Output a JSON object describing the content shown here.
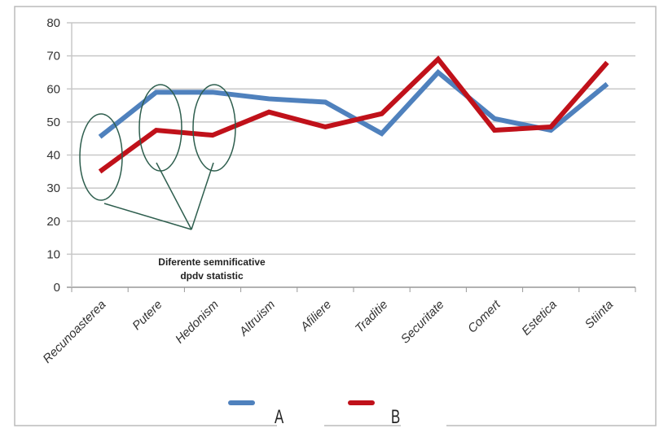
{
  "chart_data": {
    "type": "line",
    "title": "",
    "xlabel": "",
    "ylabel": "",
    "ylim": [
      0,
      80
    ],
    "yticks": [
      0,
      10,
      20,
      30,
      40,
      50,
      60,
      70,
      80
    ],
    "grid": true,
    "categories": [
      "Recunoasterea",
      "Putere",
      "Hedonism",
      "Altruism",
      "Afiliere",
      "Traditie",
      "Securitate",
      "Comert",
      "Estetica",
      "Stiinta"
    ],
    "series": [
      {
        "name": "A",
        "color": "#4f81bd",
        "values": [
          45.5,
          59,
          59,
          57,
          56,
          46.5,
          65,
          51,
          47.5,
          61.5
        ]
      },
      {
        "name": "B",
        "color": "#c0111a",
        "values": [
          35,
          47.5,
          46,
          53,
          48.5,
          52.5,
          69,
          47.5,
          48.5,
          68
        ]
      }
    ],
    "legend_position": "bottom",
    "annotation": {
      "lines": [
        "Diferente semnificative",
        "dpdv statistic"
      ],
      "highlighted_categories": [
        "Recunoasterea",
        "Putere",
        "Hedonism"
      ],
      "color": "#2e5e4e"
    }
  }
}
